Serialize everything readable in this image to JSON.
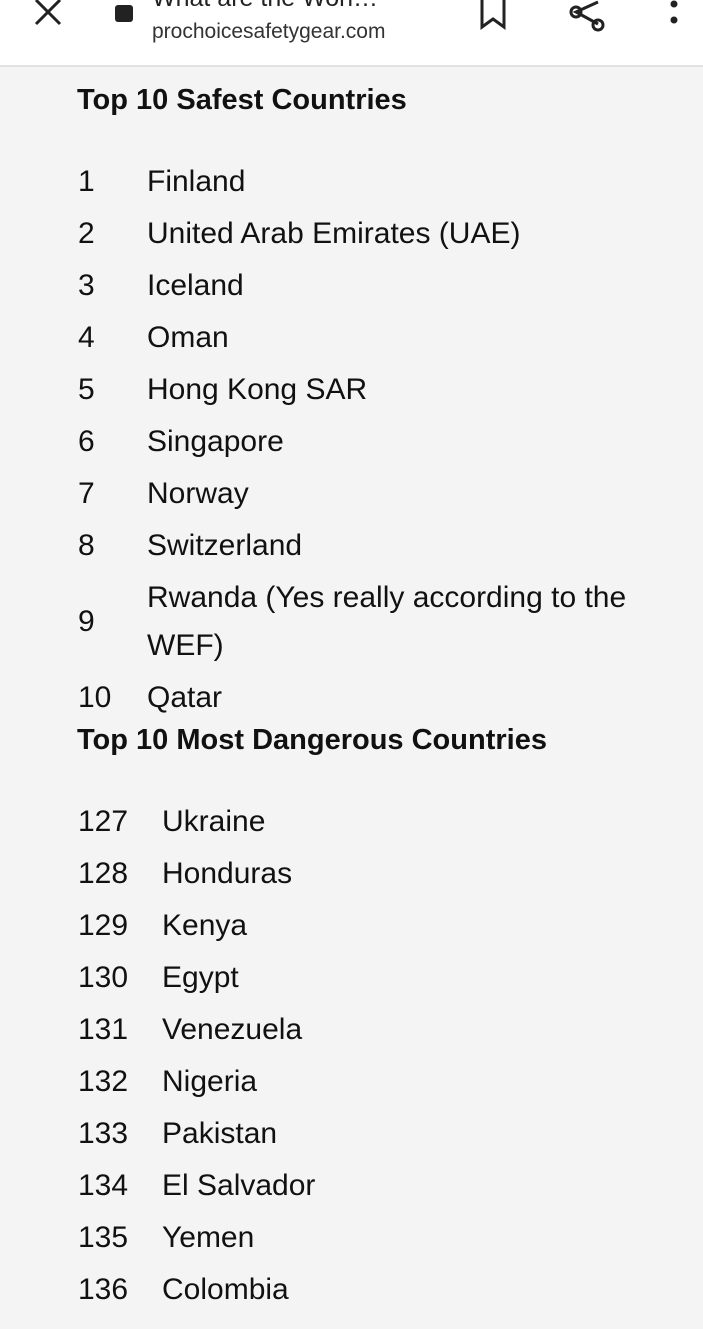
{
  "browser": {
    "title": "What are the Worl…",
    "url": "prochoicesafetygear.com",
    "icons": [
      "close-icon",
      "lock-icon",
      "bookmark-icon",
      "share-icon",
      "more-vert-icon"
    ]
  },
  "safest": {
    "heading": "Top 10 Safest Countries",
    "rows": [
      {
        "rank": "1",
        "country": "Finland"
      },
      {
        "rank": "2",
        "country": "United Arab Emirates (UAE)"
      },
      {
        "rank": "3",
        "country": "Iceland"
      },
      {
        "rank": "4",
        "country": "Oman"
      },
      {
        "rank": "5",
        "country": "Hong Kong SAR"
      },
      {
        "rank": "6",
        "country": "Singapore"
      },
      {
        "rank": "7",
        "country": "Norway"
      },
      {
        "rank": "8",
        "country": "Switzerland"
      },
      {
        "rank": "9",
        "country": "Rwanda (Yes really according to the WEF)"
      },
      {
        "rank": "10",
        "country": "Qatar"
      }
    ]
  },
  "dangerous": {
    "heading": "Top 10 Most Dangerous Countries",
    "rows": [
      {
        "rank": "127",
        "country": "Ukraine"
      },
      {
        "rank": "128",
        "country": "Honduras"
      },
      {
        "rank": "129",
        "country": "Kenya"
      },
      {
        "rank": "130",
        "country": "Egypt"
      },
      {
        "rank": "131",
        "country": "Venezuela"
      },
      {
        "rank": "132",
        "country": "Nigeria"
      },
      {
        "rank": "133",
        "country": "Pakistan"
      },
      {
        "rank": "134",
        "country": "El Salvador"
      },
      {
        "rank": "135",
        "country": "Yemen"
      },
      {
        "rank": "136",
        "country": "Colombia"
      }
    ]
  }
}
